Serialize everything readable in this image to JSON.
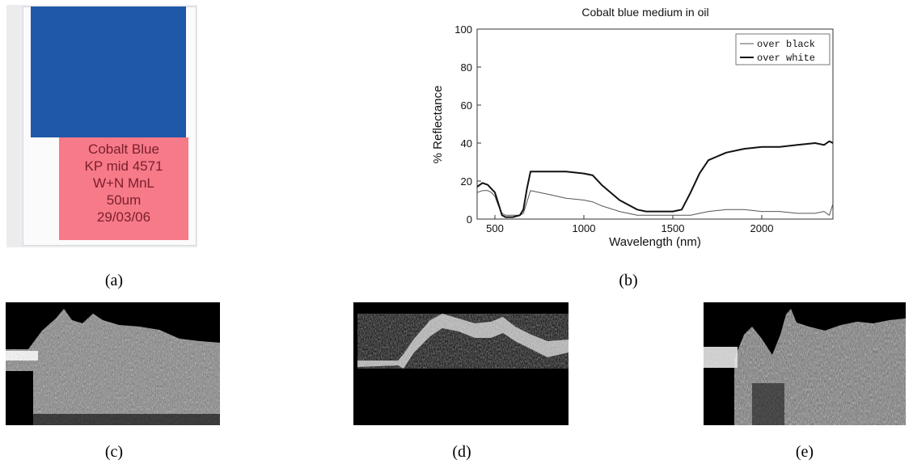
{
  "panel_a": {
    "caption": "(a)",
    "label_lines": [
      "Cobalt Blue",
      "KP mid 4571",
      "W+N MnL",
      "50um",
      "29/03/06"
    ],
    "swatch_color": "#1f58a7",
    "label_color": "#f77a88"
  },
  "panel_b": {
    "caption": "(b)"
  },
  "panel_c": {
    "caption": "(c)"
  },
  "panel_d": {
    "caption": "(d)"
  },
  "panel_e": {
    "caption": "(e)"
  },
  "chart_data": {
    "type": "line",
    "title": "Cobalt blue medium in oil",
    "xlabel": "Wavelength (nm)",
    "ylabel": "% Reflectance",
    "xlim": [
      400,
      2400
    ],
    "ylim": [
      0,
      100
    ],
    "x_ticks": [
      500,
      1000,
      1500,
      2000
    ],
    "y_ticks": [
      0,
      20,
      40,
      60,
      80,
      100
    ],
    "legend_position": "top-right",
    "grid": false,
    "series": [
      {
        "name": "over black",
        "style": "thin",
        "color": "#555555",
        "x": [
          400,
          430,
          460,
          480,
          500,
          520,
          540,
          560,
          600,
          640,
          660,
          680,
          700,
          750,
          800,
          900,
          1000,
          1050,
          1100,
          1200,
          1300,
          1400,
          1500,
          1600,
          1700,
          1800,
          1900,
          2000,
          2100,
          2200,
          2300,
          2350,
          2380,
          2400
        ],
        "y": [
          14,
          15,
          15,
          14,
          12,
          7,
          3,
          2,
          2,
          2,
          3,
          9,
          15,
          14,
          13,
          11,
          10,
          9,
          7,
          4,
          2,
          2,
          2,
          2,
          4,
          5,
          5,
          4,
          4,
          3,
          3,
          4,
          2,
          8
        ]
      },
      {
        "name": "over white",
        "style": "thick",
        "color": "#111111",
        "x": [
          400,
          430,
          460,
          480,
          500,
          520,
          540,
          560,
          600,
          640,
          660,
          680,
          700,
          750,
          800,
          900,
          1000,
          1050,
          1100,
          1200,
          1300,
          1350,
          1400,
          1500,
          1550,
          1600,
          1650,
          1700,
          1800,
          1900,
          2000,
          2100,
          2200,
          2300,
          2350,
          2380,
          2400
        ],
        "y": [
          17,
          19,
          18,
          16,
          14,
          8,
          2,
          1,
          1,
          2,
          5,
          16,
          25,
          25,
          25,
          25,
          24,
          23,
          18,
          10,
          5,
          4,
          4,
          4,
          5,
          14,
          24,
          31,
          35,
          37,
          38,
          38,
          39,
          40,
          39,
          41,
          40
        ]
      }
    ]
  }
}
